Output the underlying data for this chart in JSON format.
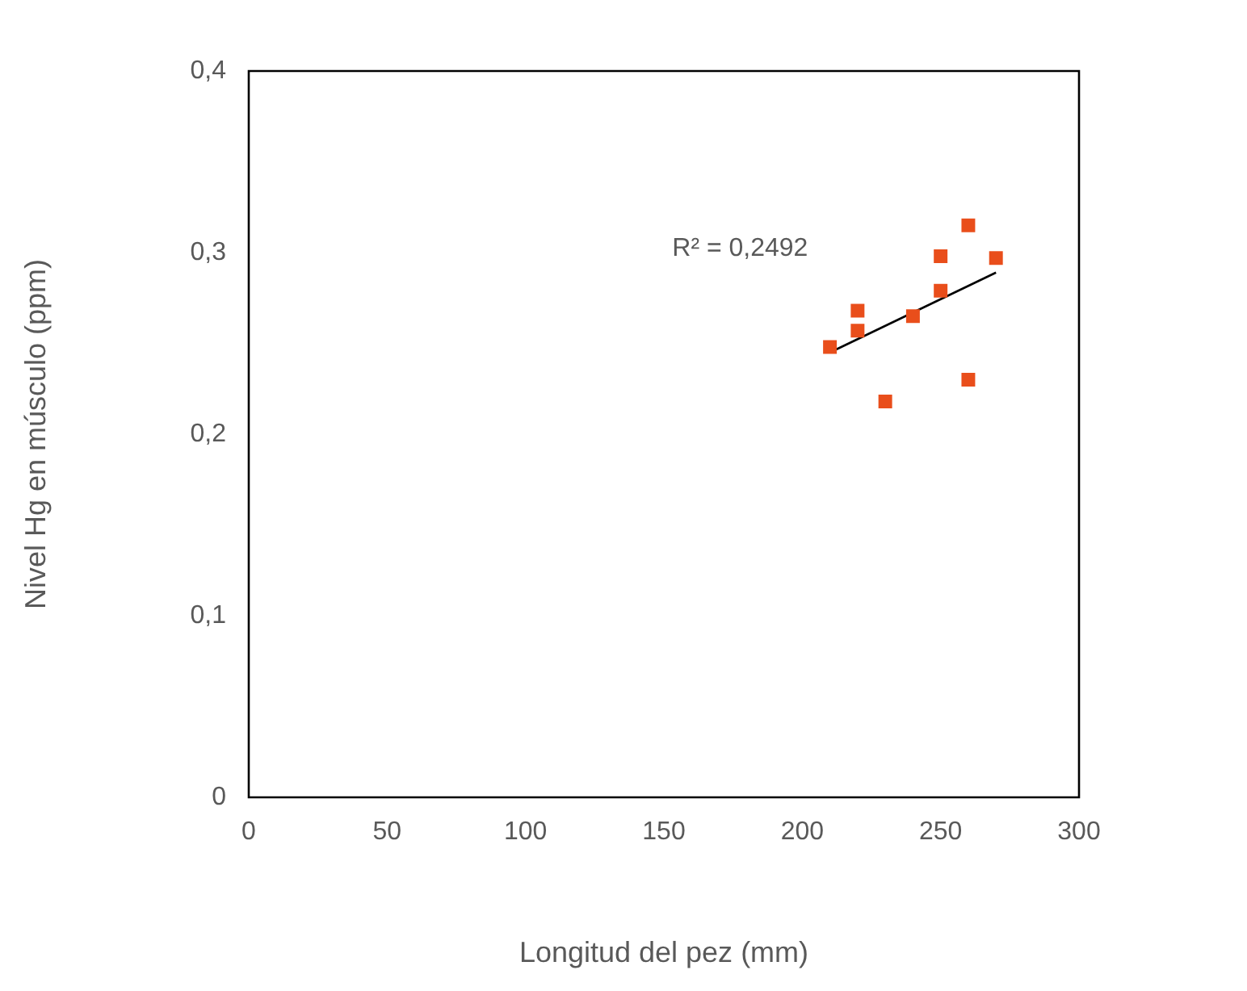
{
  "chart_data": {
    "type": "scatter",
    "xlabel": "Longitud del pez (mm)",
    "ylabel": "Nivel Hg en músculo (ppm)",
    "annotations": [
      "R² = 0,2492"
    ],
    "xlim": [
      0,
      300
    ],
    "xticks": [
      0,
      50,
      100,
      150,
      200,
      250,
      300
    ],
    "ylim": [
      0,
      0.4
    ],
    "yticks": [
      0,
      {
        "value": 0.1,
        "label": "0,1"
      },
      {
        "value": 0.2,
        "label": "0,2"
      },
      {
        "value": 0.3,
        "label": "0,3"
      },
      {
        "value": 0.4,
        "label": "0,4"
      }
    ],
    "grid": false,
    "legend": false,
    "marker": "square",
    "series": [
      {
        "color": "#e94e1b",
        "x": [
          210,
          220,
          220,
          230,
          240,
          250,
          250,
          260,
          260,
          270
        ],
        "values": [
          0.248,
          0.268,
          0.257,
          0.218,
          0.265,
          0.298,
          0.279,
          0.315,
          0.23,
          0.297
        ]
      },
      {
        "type": "line",
        "color": "#000000",
        "x": [
          210,
          270
        ],
        "values": [
          0.245,
          0.289
        ],
        "marker": "none"
      }
    ]
  }
}
